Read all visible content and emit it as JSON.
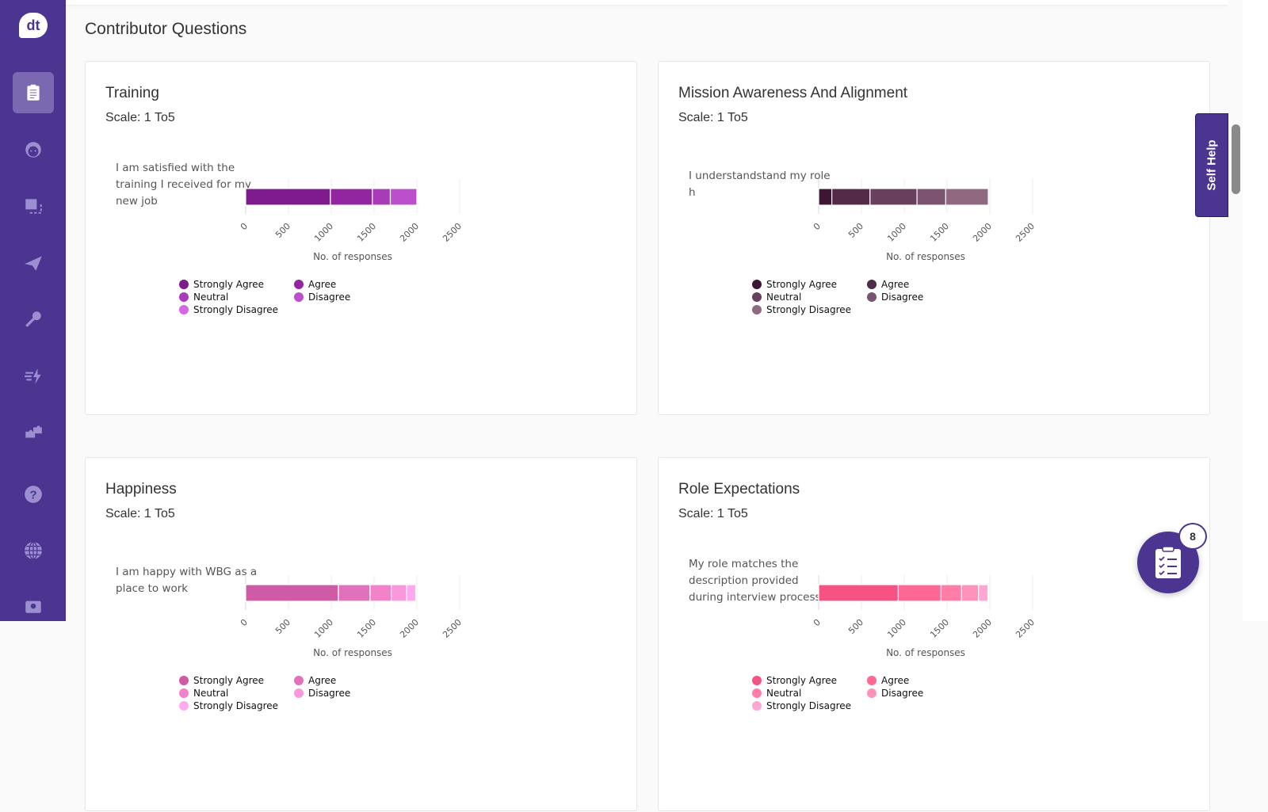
{
  "logo": "dt",
  "page_title": "Contributor Questions",
  "self_help": "Self Help",
  "fab_badge": "8",
  "sidebar": [
    "survey",
    "face",
    "screens",
    "send",
    "key",
    "actions",
    "integrations",
    "help",
    "globe",
    "camera"
  ],
  "legend_labels": [
    "Strongly Agree",
    "Agree",
    "Neutral",
    "Disagree",
    "Strongly Disagree"
  ],
  "chart_data": [
    {
      "type": "bar",
      "orientation": "horizontal-stacked",
      "title": "Training",
      "scale": "Scale: 1 To5",
      "categories": [
        "I am satisfied with the training I received for my new job"
      ],
      "series": [
        {
          "name": "Strongly Agree",
          "values": [
            990
          ]
        },
        {
          "name": "Agree",
          "values": [
            490
          ]
        },
        {
          "name": "Neutral",
          "values": [
            210
          ]
        },
        {
          "name": "Disagree",
          "values": [
            310
          ]
        },
        {
          "name": "Strongly Disagree",
          "values": [
            0
          ]
        }
      ],
      "colors": [
        "#7e1a8e",
        "#9226a0",
        "#a93bb8",
        "#bb4fcc",
        "#d468e0"
      ],
      "xlabel": "No. of responses",
      "xlim": [
        0,
        2500
      ],
      "xticks": [
        "0",
        "500",
        "1000",
        "1500",
        "2000",
        "2500"
      ]
    },
    {
      "type": "bar",
      "orientation": "horizontal-stacked",
      "title": "Mission Awareness And Alignment",
      "scale": "Scale: 1 To5",
      "categories": [
        "I understandstand my role h"
      ],
      "series": [
        {
          "name": "Strongly Agree",
          "values": [
            154
          ]
        },
        {
          "name": "Agree",
          "values": [
            446
          ]
        },
        {
          "name": "Neutral",
          "values": [
            549
          ]
        },
        {
          "name": "Disagree",
          "values": [
            336
          ]
        },
        {
          "name": "Strongly Disagree",
          "values": [
            497
          ]
        }
      ],
      "colors": [
        "#3e1633",
        "#532a48",
        "#683f5c",
        "#7c546f",
        "#906981"
      ],
      "xlabel": "No. of responses",
      "xlim": [
        0,
        2500
      ],
      "xticks": [
        "0",
        "500",
        "1000",
        "1500",
        "2000",
        "2500"
      ]
    },
    {
      "type": "bar",
      "orientation": "horizontal-stacked",
      "title": "Happiness",
      "scale": "Scale: 1 To5",
      "categories": [
        "I am happy with WBG as a place to work"
      ],
      "series": [
        {
          "name": "Strongly Agree",
          "values": [
            1083
          ]
        },
        {
          "name": "Agree",
          "values": [
            370
          ]
        },
        {
          "name": "Neutral",
          "values": [
            247
          ]
        },
        {
          "name": "Disagree",
          "values": [
            182
          ]
        },
        {
          "name": "Strongly Disagree",
          "values": [
            105
          ]
        }
      ],
      "colors": [
        "#cf5aa6",
        "#e271bb",
        "#f283cb",
        "#fb98dc",
        "#ffaaee"
      ],
      "xlabel": "No. of responses",
      "xlim": [
        0,
        2500
      ],
      "xticks": [
        "0",
        "500",
        "1000",
        "1500",
        "2000",
        "2500"
      ]
    },
    {
      "type": "bar",
      "orientation": "horizontal-stacked",
      "title": "Role Expectations",
      "scale": "Scale: 1 To5",
      "categories": [
        "My role matches the description provided during interview process"
      ],
      "series": [
        {
          "name": "Strongly Agree",
          "values": [
            930
          ]
        },
        {
          "name": "Agree",
          "values": [
            500
          ]
        },
        {
          "name": "Neutral",
          "values": [
            240
          ]
        },
        {
          "name": "Disagree",
          "values": [
            197
          ]
        },
        {
          "name": "Strongly Disagree",
          "values": [
            111
          ]
        }
      ],
      "colors": [
        "#f65383",
        "#ff6894",
        "#ff7da6",
        "#ff92bb",
        "#ffa6d4"
      ],
      "xlabel": "No. of responses",
      "xlim": [
        0,
        2500
      ],
      "xticks": [
        "0",
        "500",
        "1000",
        "1500",
        "2000",
        "2500"
      ]
    }
  ]
}
